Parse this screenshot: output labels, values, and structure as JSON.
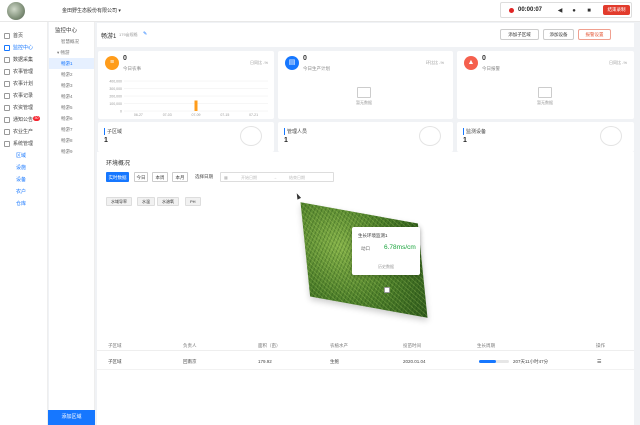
{
  "topbar": {
    "company": "金田野生态股份有限公司",
    "rec_time": "00:00:07",
    "rec_stop": "结束录制"
  },
  "sidebar": {
    "items": [
      {
        "label": "首页",
        "active": false
      },
      {
        "label": "监控中心",
        "active": true
      },
      {
        "label": "数据采集",
        "active": false
      },
      {
        "label": "农事管理",
        "active": false
      },
      {
        "label": "农事计划",
        "active": false
      },
      {
        "label": "农事记录",
        "active": false
      },
      {
        "label": "农资管理",
        "active": false
      },
      {
        "label": "通知公告",
        "active": false,
        "badge": "30"
      },
      {
        "label": "农业生产",
        "active": false
      },
      {
        "label": "系统管理",
        "active": false
      }
    ],
    "subs": [
      "区域",
      "设施",
      "设备",
      "农户",
      "仓库"
    ]
  },
  "tree": {
    "title": "监控中心",
    "root": "智慧概况",
    "group": "畅游",
    "nodes": [
      "畅游1",
      "畅游2",
      "畅游3",
      "畅游4",
      "畅游5",
      "畅游6",
      "畅游7",
      "畅游8",
      "畅游9"
    ],
    "selected": 0,
    "add": "添加区域"
  },
  "header": {
    "title": "畅游1",
    "area": "179亩规格",
    "btn_add_sub": "添加子区域",
    "btn_add_device": "添加设备",
    "btn_alarm": "报警设置"
  },
  "cards": [
    {
      "num": "0",
      "label": "今日农事",
      "right": "日同比 -%",
      "color": "#ff9c1a",
      "icon": "≡"
    },
    {
      "num": "0",
      "label": "今日生产计划",
      "right": "环比比 -%",
      "color": "#1677ff",
      "icon": "▤",
      "nodata": "暂无数据"
    },
    {
      "num": "0",
      "label": "今日报警",
      "right": "日同比 -%",
      "color": "#f5604e",
      "icon": "▲",
      "nodata": "暂无数据"
    }
  ],
  "chart_data": {
    "type": "bar",
    "categories": [
      "06-27",
      "07-03",
      "07-09",
      "07-15",
      "07-21"
    ],
    "values": [
      0,
      0,
      35,
      0,
      0
    ],
    "ylabels": [
      "400,000",
      "300,000",
      "200,000",
      "100,000",
      "0"
    ]
  },
  "stats": [
    {
      "label": "子区域",
      "num": "1"
    },
    {
      "label": "管理人员",
      "num": "1"
    },
    {
      "label": "监测设备",
      "num": "1"
    }
  ],
  "env": {
    "title": "环境概况",
    "ranges": [
      "实时数据",
      "今日",
      "本周",
      "本月",
      "选择日期"
    ],
    "date_start": "开始日期",
    "date_sep": "→",
    "date_end": "结束日期",
    "metrics": [
      "水域导率",
      "水温",
      "水溶氧",
      "PH"
    ]
  },
  "popup": {
    "title": "生长环境监测1",
    "key": "动口",
    "value": "6.78ms/cm",
    "link": "历史数据"
  },
  "table": {
    "headers": [
      "子区域",
      "负责人",
      "面积（亩）",
      "农植水产",
      "投苗时间",
      "生长周期",
      "操作"
    ],
    "row": [
      "子区域",
      "回南京",
      "179.92",
      "生鲍",
      "2020.01.04",
      "207天11小时47分",
      "☰"
    ],
    "progress": 0.55
  }
}
